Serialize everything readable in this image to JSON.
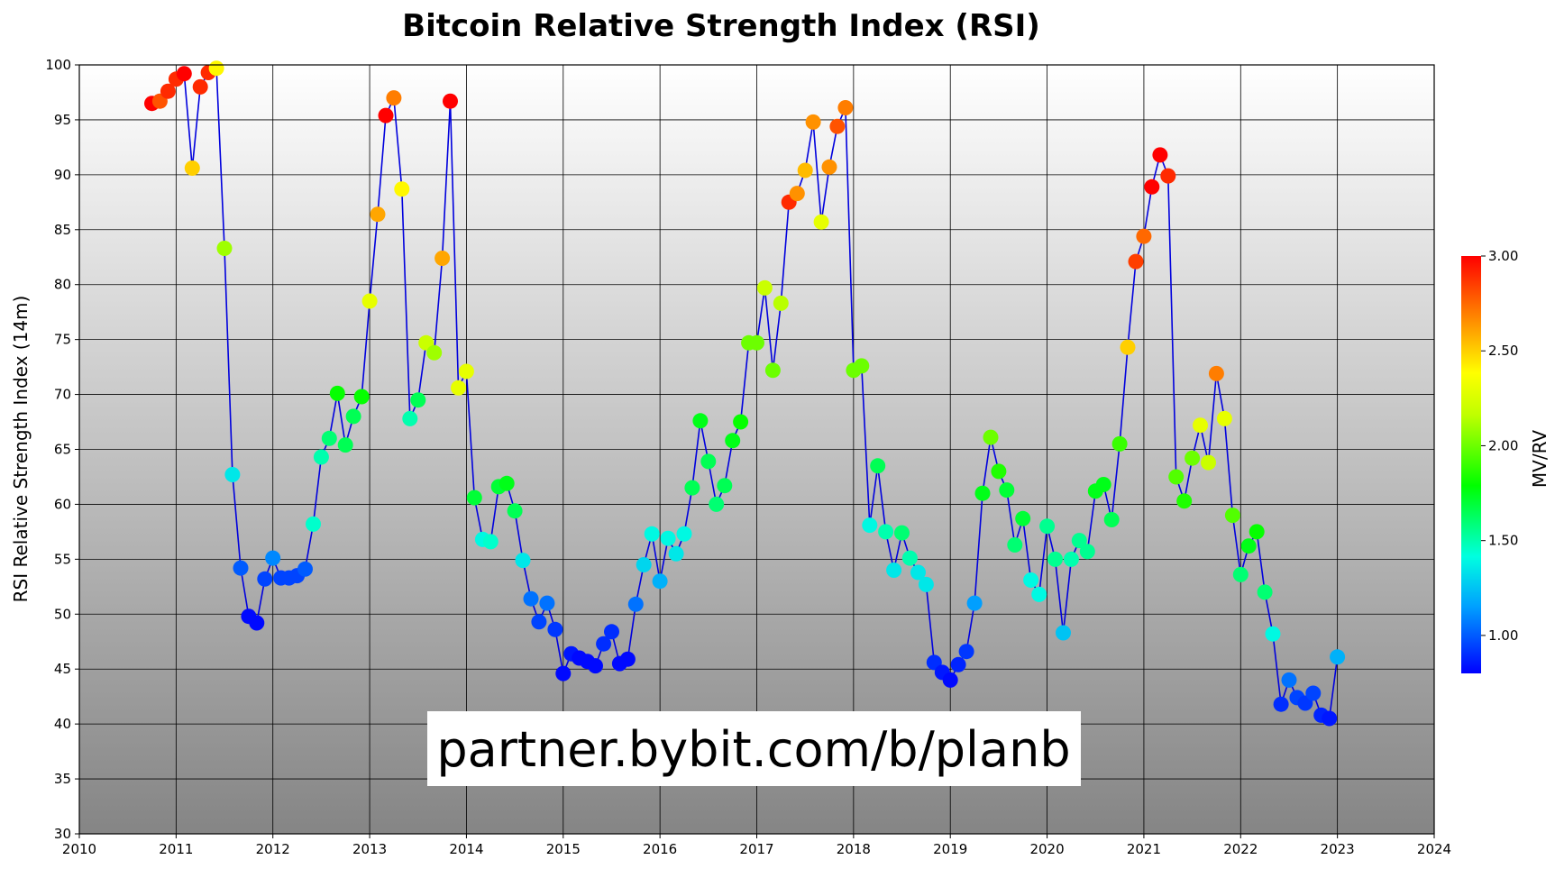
{
  "chart_data": {
    "type": "scatter",
    "title": "Bitcoin Relative Strength Index (RSI)",
    "xlabel": "",
    "ylabel": "RSI Relative Strength Index (14m)",
    "xlim": [
      2010,
      2024
    ],
    "ylim": [
      30,
      100
    ],
    "x_ticks": [
      "2010",
      "2011",
      "2012",
      "2013",
      "2014",
      "2015",
      "2016",
      "2017",
      "2018",
      "2019",
      "2020",
      "2021",
      "2022",
      "2023",
      "2024"
    ],
    "y_ticks": [
      "30",
      "35",
      "40",
      "45",
      "50",
      "55",
      "60",
      "65",
      "70",
      "75",
      "80",
      "85",
      "90",
      "95",
      "100"
    ],
    "grid": true,
    "line_color": "#0000dd",
    "colorbar": {
      "label": "MV/RV",
      "range": [
        0.8,
        3.0
      ],
      "ticks": [
        "1.00",
        "1.50",
        "2.00",
        "2.50",
        "3.00"
      ]
    },
    "annotation": "partner.bybit.com/b/planb",
    "x": [
      2010.75,
      2010.833,
      2010.917,
      2011.0,
      2011.083,
      2011.167,
      2011.25,
      2011.333,
      2011.417,
      2011.5,
      2011.583,
      2011.667,
      2011.75,
      2011.833,
      2011.917,
      2012.0,
      2012.083,
      2012.167,
      2012.25,
      2012.333,
      2012.417,
      2012.5,
      2012.583,
      2012.667,
      2012.75,
      2012.833,
      2012.917,
      2013.0,
      2013.083,
      2013.167,
      2013.25,
      2013.333,
      2013.417,
      2013.5,
      2013.583,
      2013.667,
      2013.75,
      2013.833,
      2013.917,
      2014.0,
      2014.083,
      2014.167,
      2014.25,
      2014.333,
      2014.417,
      2014.5,
      2014.583,
      2014.667,
      2014.75,
      2014.833,
      2014.917,
      2015.0,
      2015.083,
      2015.167,
      2015.25,
      2015.333,
      2015.417,
      2015.5,
      2015.583,
      2015.667,
      2015.75,
      2015.833,
      2015.917,
      2016.0,
      2016.083,
      2016.167,
      2016.25,
      2016.333,
      2016.417,
      2016.5,
      2016.583,
      2016.667,
      2016.75,
      2016.833,
      2016.917,
      2017.0,
      2017.083,
      2017.167,
      2017.25,
      2017.333,
      2017.417,
      2017.5,
      2017.583,
      2017.667,
      2017.75,
      2017.833,
      2017.917,
      2018.0,
      2018.083,
      2018.167,
      2018.25,
      2018.333,
      2018.417,
      2018.5,
      2018.583,
      2018.667,
      2018.75,
      2018.833,
      2018.917,
      2019.0,
      2019.083,
      2019.167,
      2019.25,
      2019.333,
      2019.417,
      2019.5,
      2019.583,
      2019.667,
      2019.75,
      2019.833,
      2019.917,
      2020.0,
      2020.083,
      2020.167,
      2020.25,
      2020.333,
      2020.417,
      2020.5,
      2020.583,
      2020.667,
      2020.75,
      2020.833,
      2020.917,
      2021.0,
      2021.083,
      2021.167,
      2021.25,
      2021.333,
      2021.417,
      2021.5,
      2021.583,
      2021.667,
      2021.75,
      2021.833,
      2021.917,
      2022.0,
      2022.083,
      2022.167,
      2022.25,
      2022.333,
      2022.417,
      2022.5,
      2022.583,
      2022.667,
      2022.75,
      2022.833,
      2022.917,
      2023.0
    ],
    "y": [
      96.5,
      96.7,
      97.6,
      98.7,
      99.2,
      90.6,
      98.0,
      99.3,
      99.7,
      83.3,
      62.7,
      54.2,
      49.8,
      49.2,
      53.2,
      55.1,
      53.3,
      53.3,
      53.5,
      54.1,
      58.2,
      64.3,
      66.0,
      70.1,
      65.4,
      68.0,
      69.8,
      78.5,
      86.4,
      95.4,
      97.0,
      88.7,
      67.8,
      69.5,
      74.7,
      73.8,
      82.4,
      96.7,
      70.6,
      72.1,
      60.6,
      56.8,
      56.6,
      61.6,
      61.9,
      59.4,
      54.9,
      51.4,
      49.3,
      51.0,
      48.6,
      44.6,
      46.4,
      46.0,
      45.7,
      45.3,
      47.3,
      48.4,
      45.5,
      45.9,
      50.9,
      54.5,
      57.3,
      53.0,
      56.9,
      55.5,
      57.3,
      61.5,
      67.6,
      63.9,
      60.0,
      61.7,
      65.8,
      67.5,
      74.7,
      74.7,
      79.7,
      72.2,
      78.3,
      87.5,
      88.3,
      90.4,
      94.8,
      85.7,
      90.7,
      94.4,
      96.1,
      72.2,
      72.6,
      58.1,
      63.5,
      57.5,
      54.0,
      57.4,
      55.1,
      53.8,
      52.7,
      45.6,
      44.7,
      44.0,
      45.4,
      46.6,
      51.0,
      61.0,
      66.1,
      63.0,
      61.3,
      56.3,
      58.7,
      53.1,
      51.8,
      58.0,
      55.0,
      48.3,
      55.0,
      56.7,
      55.7,
      61.2,
      61.8,
      58.6,
      65.5,
      74.3,
      82.1,
      84.4,
      88.9,
      91.8,
      89.9,
      62.5,
      60.3,
      64.2,
      67.2,
      63.8,
      71.9,
      67.8,
      59.0,
      53.6,
      56.2,
      57.5,
      52.0,
      48.2,
      41.8,
      44.0,
      42.4,
      41.9,
      42.8,
      40.8,
      40.5,
      46.1
    ],
    "mvrv": [
      3.0,
      2.8,
      2.9,
      2.9,
      3.0,
      2.5,
      2.9,
      2.9,
      2.4,
      2.1,
      1.35,
      1.0,
      0.82,
      0.82,
      0.95,
      1.1,
      0.95,
      0.95,
      0.95,
      1.0,
      1.45,
      1.5,
      1.6,
      1.8,
      1.65,
      1.65,
      1.8,
      2.3,
      2.6,
      3.0,
      2.7,
      2.4,
      1.5,
      1.65,
      2.2,
      2.1,
      2.6,
      3.0,
      2.3,
      2.3,
      1.7,
      1.4,
      1.45,
      1.7,
      1.75,
      1.65,
      1.35,
      1.05,
      0.95,
      1.05,
      0.92,
      0.82,
      0.85,
      0.82,
      0.82,
      0.82,
      0.9,
      0.9,
      0.82,
      0.82,
      1.05,
      1.3,
      1.4,
      1.2,
      1.4,
      1.35,
      1.4,
      1.65,
      1.75,
      1.65,
      1.6,
      1.65,
      1.75,
      1.8,
      2.0,
      2.0,
      2.2,
      2.0,
      2.15,
      2.9,
      2.65,
      2.55,
      2.65,
      2.3,
      2.65,
      2.8,
      2.7,
      2.0,
      2.0,
      1.4,
      1.65,
      1.5,
      1.35,
      1.6,
      1.5,
      1.35,
      1.35,
      0.9,
      0.85,
      0.82,
      0.88,
      0.92,
      1.15,
      1.75,
      2.0,
      1.85,
      1.7,
      1.6,
      1.7,
      1.4,
      1.4,
      1.55,
      1.55,
      1.25,
      1.5,
      1.55,
      1.55,
      1.75,
      1.75,
      1.65,
      1.9,
      2.5,
      2.85,
      2.75,
      3.0,
      3.0,
      2.9,
      1.95,
      1.85,
      2.0,
      2.3,
      2.2,
      2.7,
      2.3,
      1.95,
      1.6,
      1.75,
      1.8,
      1.6,
      1.4,
      0.9,
      1.05,
      0.95,
      0.92,
      0.95,
      0.88,
      0.85,
      1.2
    ]
  }
}
